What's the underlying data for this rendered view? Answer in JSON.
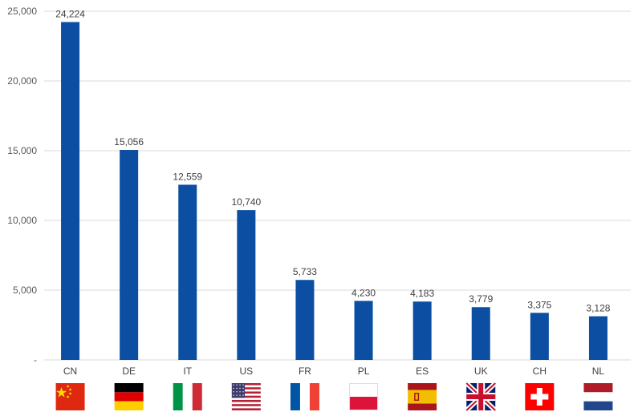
{
  "chart_data": {
    "type": "bar",
    "categories": [
      "CN",
      "DE",
      "IT",
      "US",
      "FR",
      "PL",
      "ES",
      "UK",
      "CH",
      "NL"
    ],
    "values": [
      24224,
      15056,
      12559,
      10740,
      5733,
      4230,
      4183,
      3779,
      3375,
      3128
    ],
    "data_labels": [
      "24,224",
      "15,056",
      "12,559",
      "10,740",
      "5,733",
      "4,230",
      "4,183",
      "3,779",
      "3,375",
      "3,128"
    ],
    "y_ticks": [
      {
        "value": 0,
        "label": "-"
      },
      {
        "value": 5000,
        "label": "5,000"
      },
      {
        "value": 10000,
        "label": "10,000"
      },
      {
        "value": 15000,
        "label": "15,000"
      },
      {
        "value": 20000,
        "label": "20,000"
      },
      {
        "value": 25000,
        "label": "25,000"
      }
    ],
    "ylim": [
      0,
      25000
    ],
    "grid": true,
    "legend": "none",
    "title": "",
    "xlabel": "",
    "ylabel": "",
    "bar_color": "#0b4ea2",
    "grid_color": "#d9d9d9",
    "flags": [
      "flag-cn-icon",
      "flag-de-icon",
      "flag-it-icon",
      "flag-us-icon",
      "flag-fr-icon",
      "flag-pl-icon",
      "flag-es-icon",
      "flag-uk-icon",
      "flag-ch-icon",
      "flag-nl-icon"
    ]
  }
}
